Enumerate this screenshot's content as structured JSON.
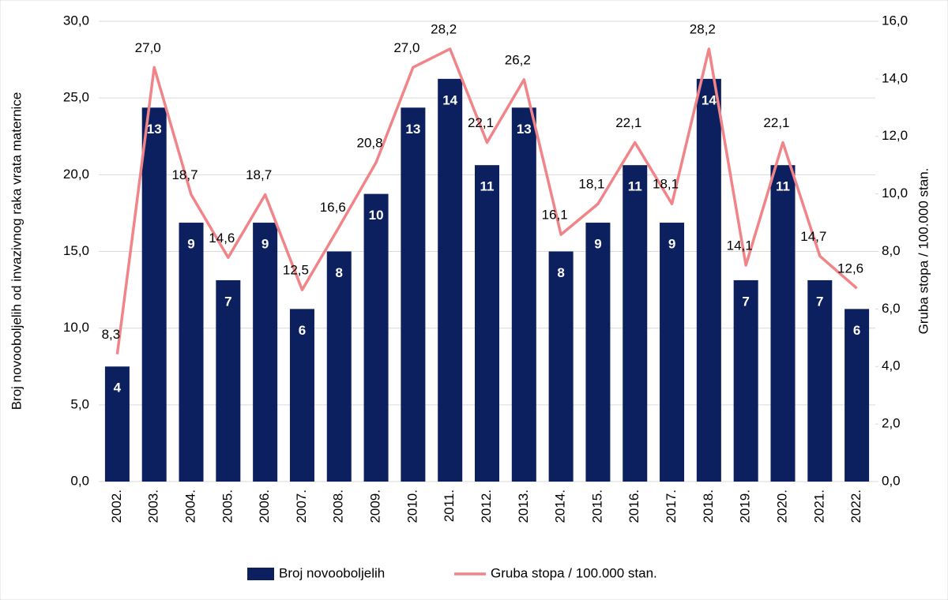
{
  "chart_data": {
    "type": "bar",
    "categories": [
      "2002.",
      "2003.",
      "2004.",
      "2005.",
      "2006.",
      "2007.",
      "2008.",
      "2009.",
      "2010.",
      "2011.",
      "2012.",
      "2013.",
      "2014.",
      "2015.",
      "2016.",
      "2017.",
      "2018.",
      "2019.",
      "2020.",
      "2021.",
      "2022."
    ],
    "series": [
      {
        "name": "Broj novooboljelih",
        "type": "bar",
        "axis": "y2",
        "color": "#0c1f5e",
        "values": [
          4,
          13,
          9,
          7,
          9,
          6,
          8,
          10,
          13,
          14,
          11,
          13,
          8,
          9,
          11,
          9,
          14,
          7,
          11,
          7,
          6
        ]
      },
      {
        "name": "Gruba stopa / 100.000 stan.",
        "type": "line",
        "axis": "y",
        "color": "#f08488",
        "values": [
          8.3,
          27.0,
          18.7,
          14.6,
          18.7,
          12.5,
          16.6,
          20.8,
          27.0,
          28.2,
          22.1,
          26.2,
          16.1,
          18.1,
          22.1,
          18.1,
          28.2,
          14.1,
          22.1,
          14.7,
          12.6
        ],
        "value_labels": [
          "8,3",
          "27,0",
          "18,7",
          "14,6",
          "18,7",
          "12,5",
          "16,6",
          "20,8",
          "27,0",
          "28,2",
          "22,1",
          "26,2",
          "16,1",
          "18,1",
          "22,1",
          "18,1",
          "28,2",
          "14,1",
          "22,1",
          "14,7",
          "12,6"
        ]
      }
    ],
    "ylabel": "Broj novooboljelih od invazivnog raka vrata maternice",
    "y2label": "Gruba stopa / 100.000 stan.",
    "ylim": [
      0,
      30
    ],
    "yticks": [
      {
        "value": 0,
        "label": "0,0"
      },
      {
        "value": 5,
        "label": "5,0"
      },
      {
        "value": 10,
        "label": "10,0"
      },
      {
        "value": 15,
        "label": "15,0"
      },
      {
        "value": 20,
        "label": "20,0"
      },
      {
        "value": 25,
        "label": "25,0"
      },
      {
        "value": 30,
        "label": "30,0"
      }
    ],
    "y2lim": [
      0,
      16
    ],
    "y2ticks": [
      {
        "value": 0,
        "label": "0,0"
      },
      {
        "value": 2,
        "label": "2,0"
      },
      {
        "value": 4,
        "label": "4,0"
      },
      {
        "value": 6,
        "label": "6,0"
      },
      {
        "value": 8,
        "label": "8,0"
      },
      {
        "value": 10,
        "label": "10,0"
      },
      {
        "value": 12,
        "label": "12,0"
      },
      {
        "value": 14,
        "label": "14,0"
      },
      {
        "value": 16,
        "label": "16,0"
      }
    ],
    "grid": true,
    "legend": "bottom"
  }
}
